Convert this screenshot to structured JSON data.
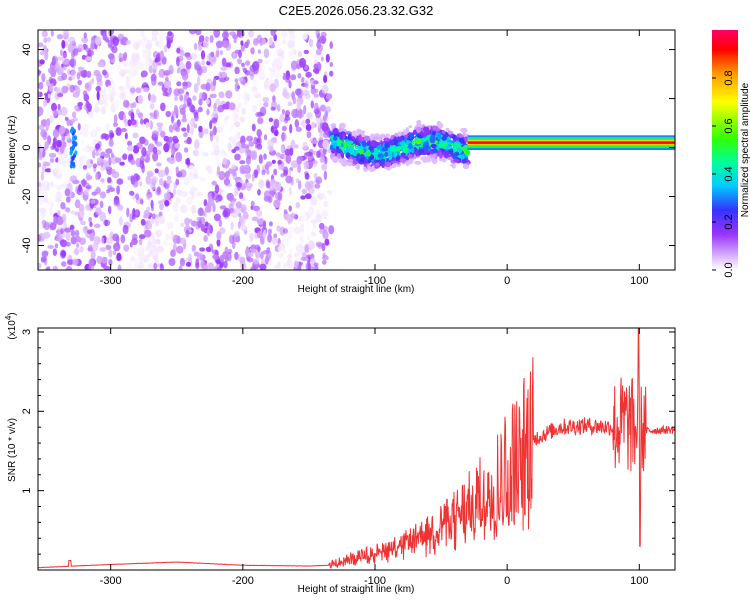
{
  "title": "C2E5.2026.056.23.32.G32",
  "chart_data": [
    {
      "type": "heatmap",
      "xlabel": "Height of straight line (km)",
      "ylabel": "Frequency (Hz)",
      "xlim": [
        -355,
        127
      ],
      "ylim": [
        -50,
        48
      ],
      "xticks": [
        -300,
        -200,
        -100,
        0,
        100
      ],
      "yticks": [
        -40,
        -20,
        0,
        20,
        40
      ],
      "colorbar": {
        "label": "Normalized spectral amplitude",
        "ticks": [
          0.0,
          0.2,
          0.4,
          0.6,
          0.8
        ],
        "tick_labels": [
          "0.0",
          "0.2",
          "0.4",
          "0.6",
          "0.8"
        ],
        "range": [
          0,
          1
        ]
      },
      "regions": [
        {
          "name": "noise-region",
          "x_range": [
            -355,
            -133
          ],
          "level": 0.12
        },
        {
          "name": "transition-band",
          "x_range": [
            -133,
            -30
          ],
          "center_freq": 0,
          "half_width": 6,
          "level": 0.45
        },
        {
          "name": "stable-signal-band",
          "x_range": [
            -30,
            127
          ],
          "center_freq": 2,
          "half_width": 3,
          "level": 0.95
        }
      ]
    },
    {
      "type": "line",
      "xlabel": "Height of straight line (km)",
      "ylabel": "SNR (10 * v/v)",
      "y_multiplier_label": "(x10",
      "y_multiplier_exp": "4",
      "y_multiplier_close": ")",
      "xlim": [
        -355,
        127
      ],
      "ylim": [
        0,
        3.05
      ],
      "xticks": [
        -300,
        -200,
        -100,
        0,
        100
      ],
      "yticks": [
        1,
        2,
        3
      ],
      "color": "#ee3333",
      "series_envelope": {
        "x": [
          -355,
          -300,
          -250,
          -200,
          -150,
          -135,
          -120,
          -100,
          -80,
          -60,
          -40,
          -20,
          0,
          20,
          40,
          60,
          80,
          90,
          100,
          110,
          127
        ],
        "y": [
          0.03,
          0.07,
          0.1,
          0.06,
          0.05,
          0.06,
          0.15,
          0.25,
          0.35,
          0.5,
          0.7,
          0.95,
          1.3,
          1.65,
          1.8,
          1.82,
          1.8,
          1.85,
          1.75,
          1.76,
          1.77
        ]
      }
    }
  ]
}
